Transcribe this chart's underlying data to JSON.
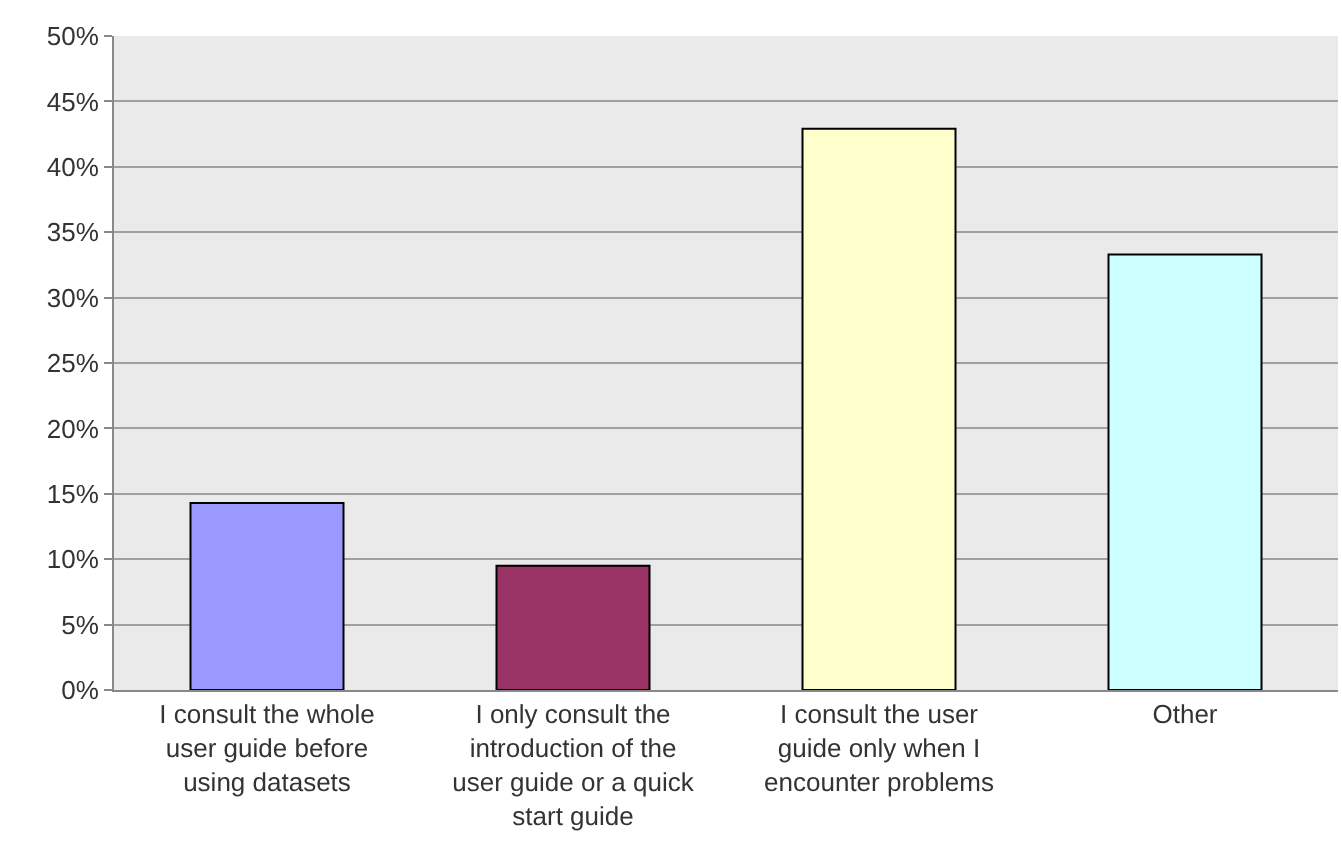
{
  "chart_data": {
    "type": "bar",
    "categories": [
      "I consult the whole user guide before using datasets",
      "I only consult the introduction of the user guide or a quick start guide",
      "I consult the user guide only when I encounter problems",
      "Other"
    ],
    "values": [
      14.3,
      9.5,
      42.9,
      33.3
    ],
    "colors": [
      "#9999ff",
      "#993366",
      "#ffffcc",
      "#ccffff"
    ],
    "ylim": [
      0,
      50
    ],
    "yticks": [
      {
        "value": 0,
        "label": "0%"
      },
      {
        "value": 5,
        "label": "5%"
      },
      {
        "value": 10,
        "label": "10%"
      },
      {
        "value": 15,
        "label": "15%"
      },
      {
        "value": 20,
        "label": "20%"
      },
      {
        "value": 25,
        "label": "25%"
      },
      {
        "value": 30,
        "label": "30%"
      },
      {
        "value": 35,
        "label": "35%"
      },
      {
        "value": 40,
        "label": "40%"
      },
      {
        "value": 45,
        "label": "45%"
      },
      {
        "value": 50,
        "label": "50%"
      }
    ],
    "grid": "y"
  }
}
